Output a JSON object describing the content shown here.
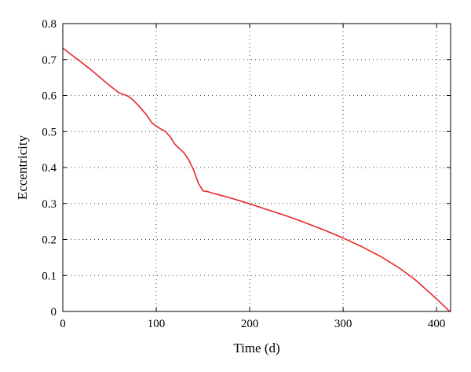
{
  "chart_data": {
    "type": "line",
    "title": "",
    "xlabel": "Time (d)",
    "ylabel": "Eccentricity",
    "xlim": [
      0,
      415
    ],
    "ylim": [
      0,
      0.8
    ],
    "x_ticks": [
      0,
      100,
      200,
      300,
      400
    ],
    "y_ticks": [
      0,
      0.1,
      0.2,
      0.3,
      0.4,
      0.5,
      0.6,
      0.7,
      0.8
    ],
    "x_tick_labels": [
      "0",
      "100",
      "200",
      "300",
      "400"
    ],
    "y_tick_labels": [
      "0",
      "0.1",
      "0.2",
      "0.3",
      "0.4",
      "0.5",
      "0.6",
      "0.7",
      "0.8"
    ],
    "grid": true,
    "grid_style": "dotted",
    "series": [
      {
        "color": "#e8262a",
        "x": [
          0,
          10,
          20,
          30,
          40,
          50,
          55,
          60,
          65,
          70,
          75,
          80,
          85,
          90,
          95,
          100,
          105,
          110,
          115,
          120,
          125,
          130,
          135,
          140,
          145,
          150,
          155,
          160,
          170,
          180,
          190,
          200,
          220,
          240,
          260,
          280,
          300,
          320,
          340,
          360,
          370,
          380,
          390,
          400,
          410,
          414
        ],
        "y": [
          0.732,
          0.712,
          0.692,
          0.672,
          0.65,
          0.628,
          0.618,
          0.608,
          0.603,
          0.598,
          0.588,
          0.575,
          0.56,
          0.545,
          0.525,
          0.515,
          0.507,
          0.5,
          0.485,
          0.465,
          0.452,
          0.44,
          0.42,
          0.393,
          0.357,
          0.335,
          0.333,
          0.329,
          0.322,
          0.315,
          0.307,
          0.299,
          0.282,
          0.265,
          0.246,
          0.226,
          0.204,
          0.18,
          0.153,
          0.121,
          0.102,
          0.082,
          0.058,
          0.035,
          0.01,
          0.0
        ]
      }
    ]
  }
}
